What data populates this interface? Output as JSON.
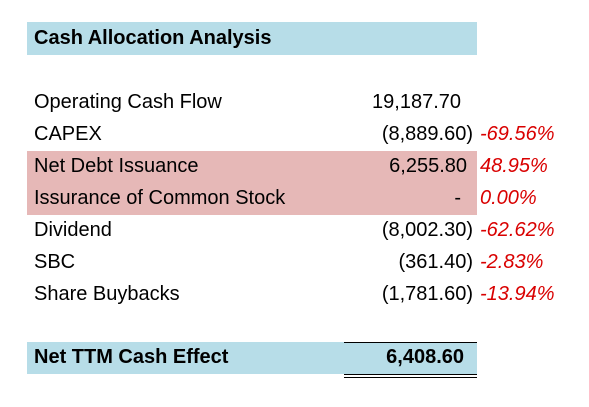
{
  "title": "Cash Allocation Analysis",
  "colors": {
    "header_fill": "#b7dde8",
    "highlight_fill": "#e6b8b7",
    "percent_text": "#d90000"
  },
  "rows": [
    {
      "label": "Operating Cash Flow",
      "value": "19,187.70",
      "percent": ""
    },
    {
      "label": "CAPEX",
      "value": "(8,889.60)",
      "percent": "-69.56%"
    },
    {
      "label": "Net Debt Issuance",
      "value": "6,255.80",
      "percent": "48.95%"
    },
    {
      "label": "Issurance of Common Stock",
      "value": "-",
      "percent": "0.00%"
    },
    {
      "label": "Dividend",
      "value": "(8,002.30)",
      "percent": "-62.62%"
    },
    {
      "label": "SBC",
      "value": "(361.40)",
      "percent": "-2.83%"
    },
    {
      "label": "Share Buybacks",
      "value": "(1,781.60)",
      "percent": "-13.94%"
    }
  ],
  "total": {
    "label": "Net TTM Cash Effect",
    "value": "6,408.60"
  }
}
